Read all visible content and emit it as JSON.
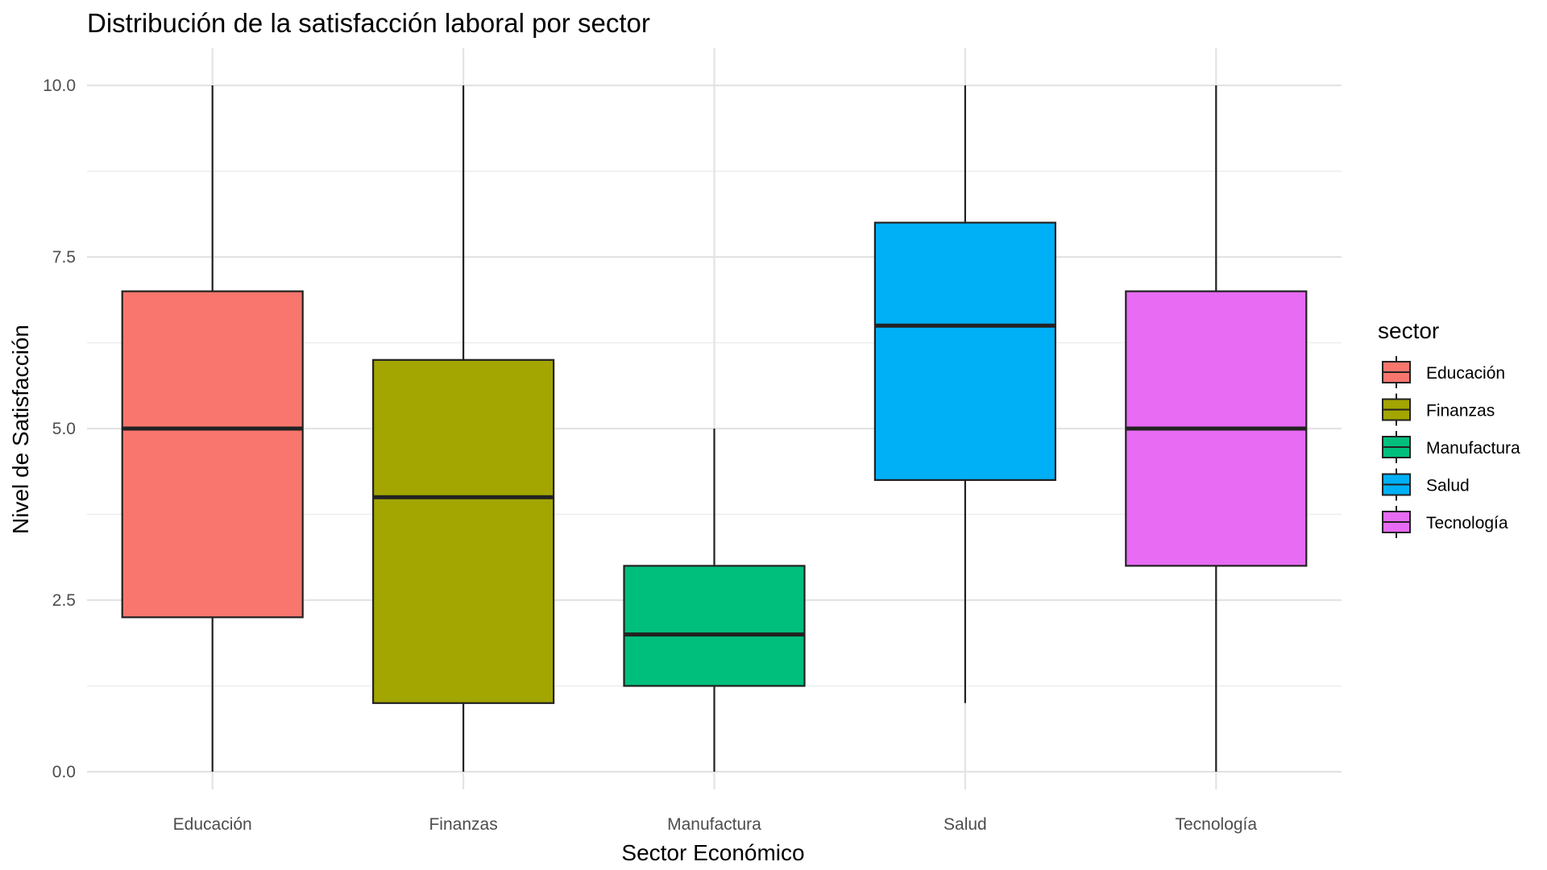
{
  "chart_data": {
    "type": "box",
    "title": "Distribución de la satisfacción laboral por sector",
    "xlabel": "Sector Económico",
    "ylabel": "Nivel de Satisfacción",
    "ylim": [
      -0.2,
      10.5
    ],
    "yticks": [
      0.0,
      2.5,
      5.0,
      7.5,
      10.0
    ],
    "ytick_labels": [
      "0.0",
      "2.5",
      "5.0",
      "7.5",
      "10.0"
    ],
    "grid": true,
    "legend": {
      "title": "sector",
      "position": "right"
    },
    "categories": [
      "Educación",
      "Finanzas",
      "Manufactura",
      "Salud",
      "Tecnología"
    ],
    "series": [
      {
        "name": "Educación",
        "color": "#F8766D",
        "min": 0,
        "q1": 2.25,
        "median": 5.0,
        "q3": 7.0,
        "max": 10
      },
      {
        "name": "Finanzas",
        "color": "#A3A500",
        "min": 0,
        "q1": 1.0,
        "median": 4.0,
        "q3": 6.0,
        "max": 10
      },
      {
        "name": "Manufactura",
        "color": "#00BF7D",
        "min": 0,
        "q1": 1.25,
        "median": 2.0,
        "q3": 3.0,
        "max": 5
      },
      {
        "name": "Salud",
        "color": "#00B0F6",
        "min": 1,
        "q1": 4.25,
        "median": 6.5,
        "q3": 8.0,
        "max": 10
      },
      {
        "name": "Tecnología",
        "color": "#E76BF3",
        "min": 0,
        "q1": 3.0,
        "median": 5.0,
        "q3": 7.0,
        "max": 10
      }
    ]
  }
}
